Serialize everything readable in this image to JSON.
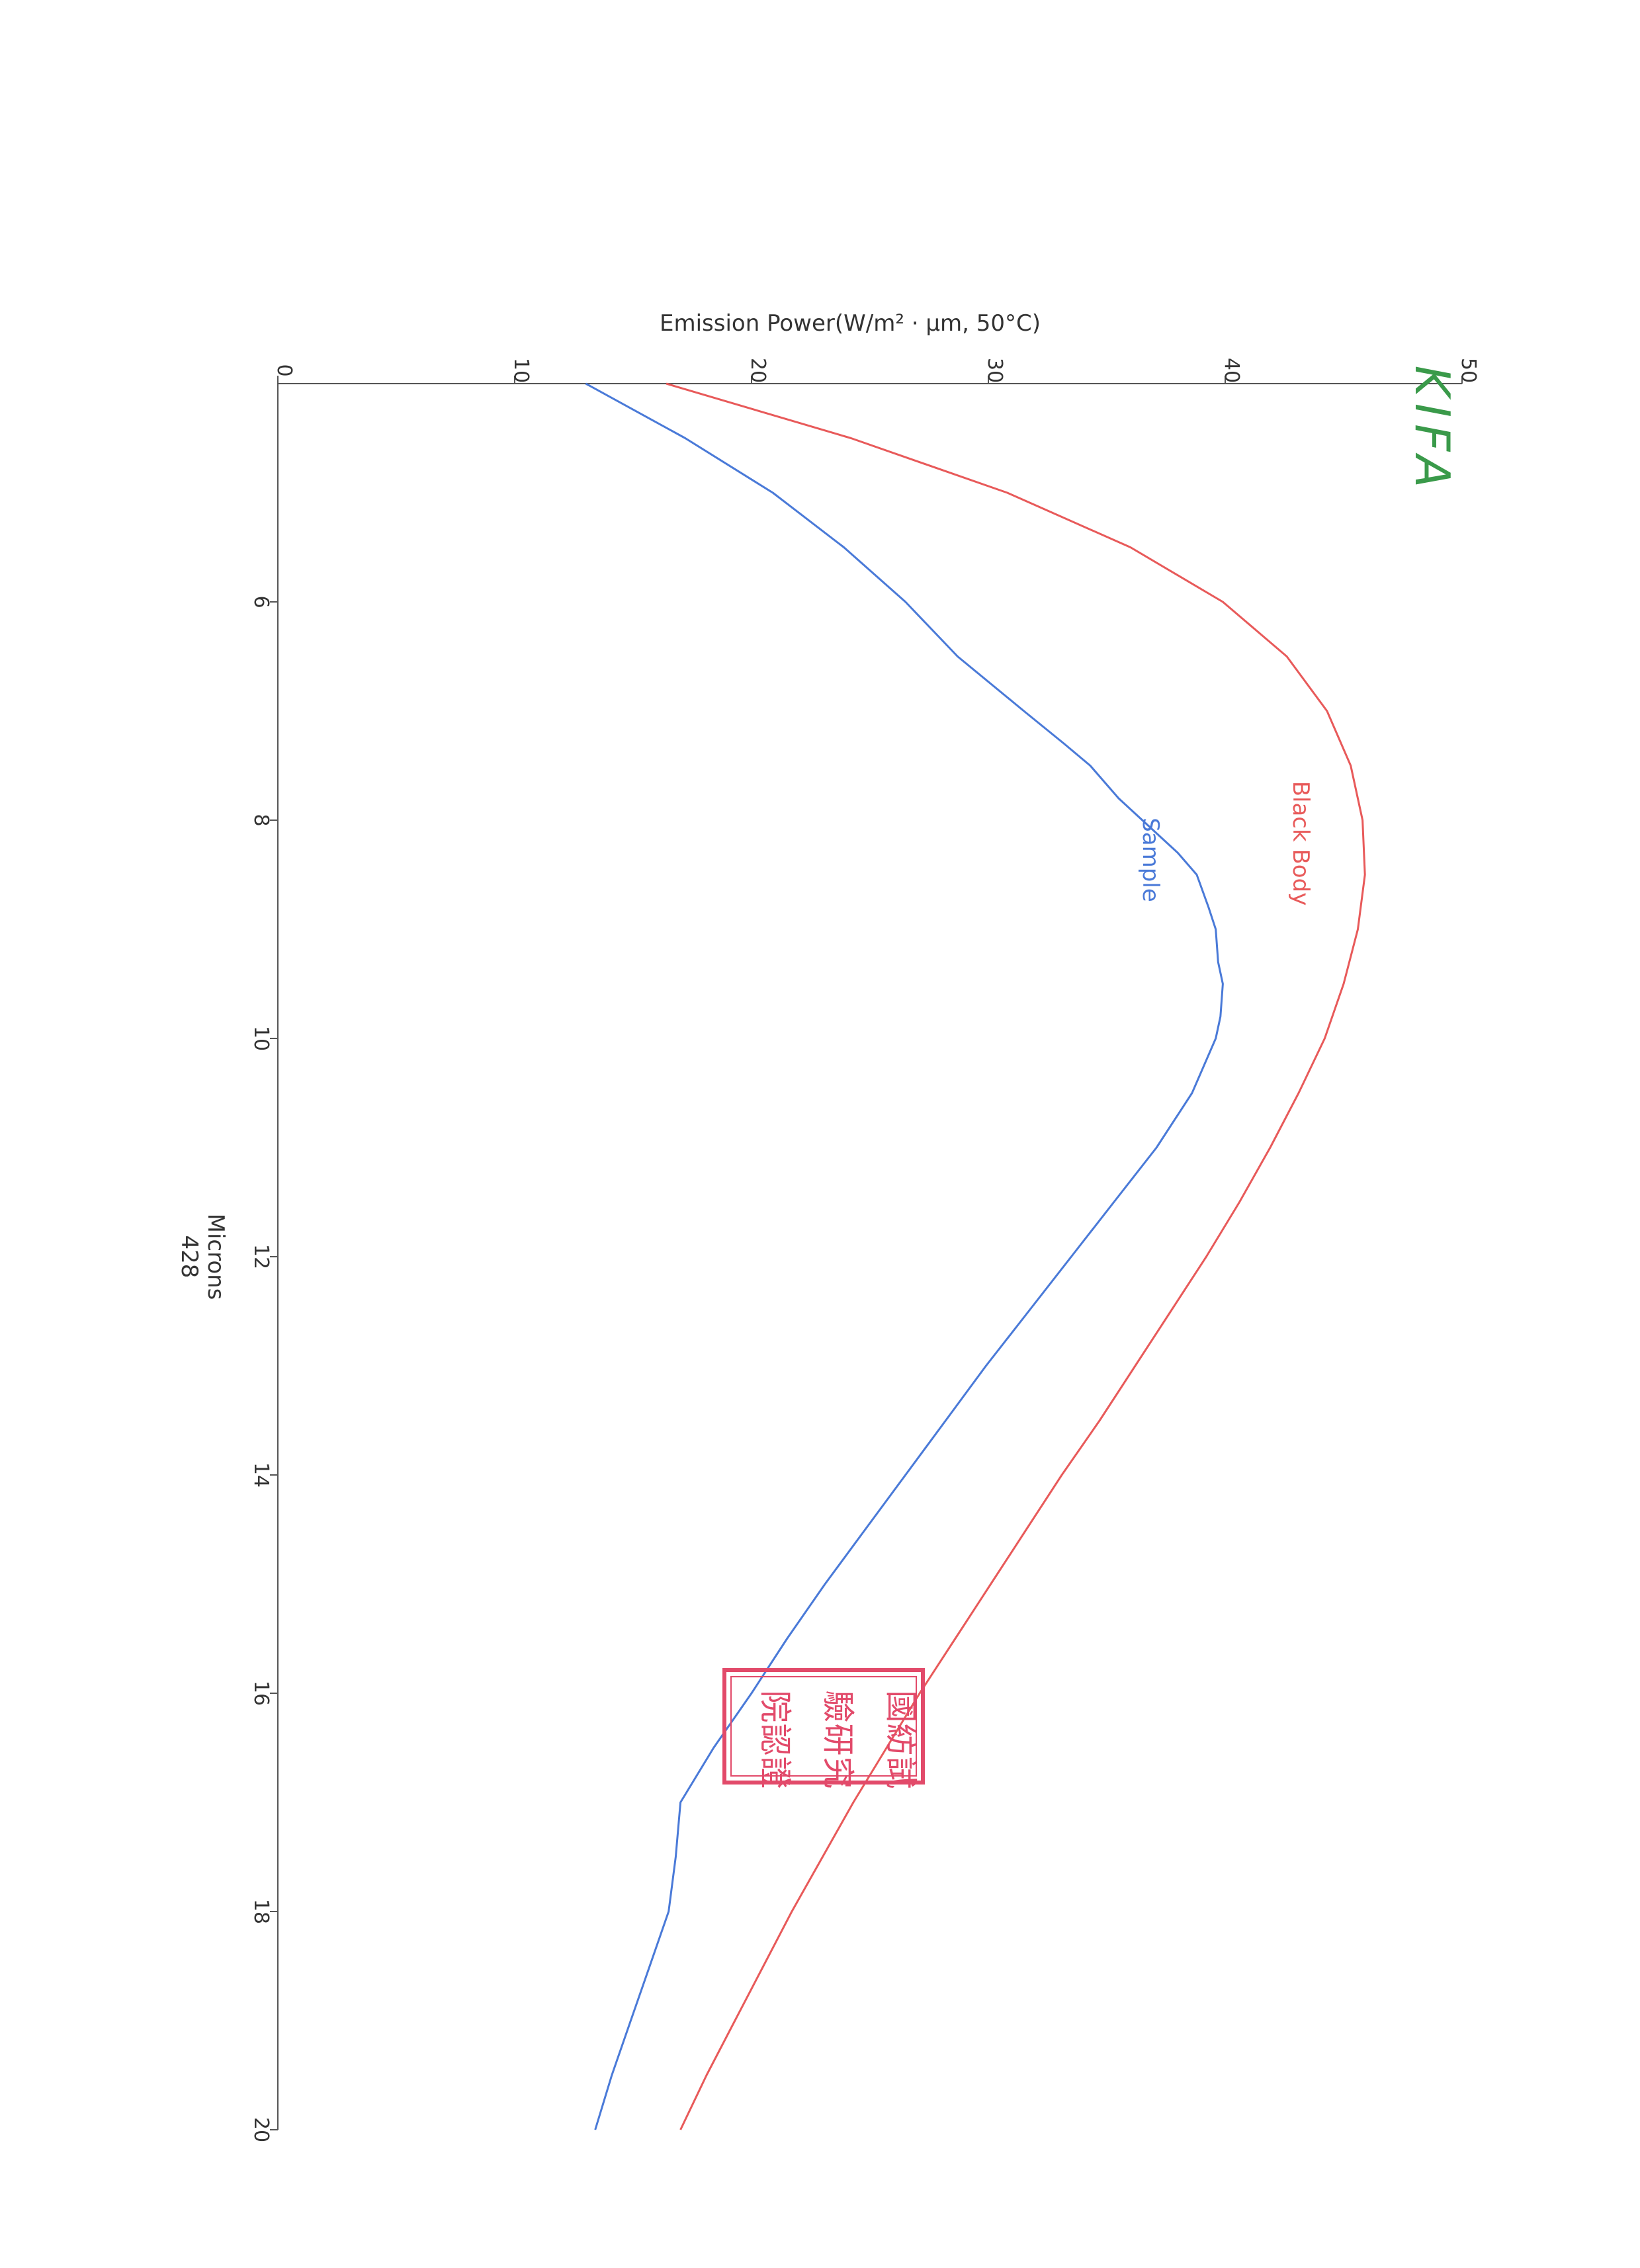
{
  "chart_data": {
    "type": "line",
    "orientation": "rotated-90-clockwise",
    "xlabel": "Microns",
    "xlabel_secondary": "428",
    "ylabel": "Emission Power(W/m² · μm, 50°C)",
    "xlim": [
      4,
      20
    ],
    "ylim": [
      0,
      50
    ],
    "x_ticks": [
      6,
      8,
      10,
      12,
      14,
      16,
      18,
      20
    ],
    "y_ticks": [
      0,
      10,
      20,
      30,
      40,
      50
    ],
    "x_tick_labels": [
      "6",
      "8",
      "10",
      "12",
      "14",
      "16",
      "18",
      "20"
    ],
    "y_tick_labels": [
      "0",
      "10",
      "20",
      "30",
      "40",
      "50"
    ],
    "grid": false,
    "legend": "inline labels",
    "series": [
      {
        "name": "Black Body",
        "color": "#e85a5a",
        "x": [
          4,
          4.5,
          5,
          5.5,
          6,
          6.5,
          7,
          7.5,
          8,
          8.5,
          9,
          9.5,
          10,
          10.5,
          11,
          11.5,
          12,
          12.5,
          13,
          13.5,
          14,
          14.5,
          15,
          15.5,
          16,
          16.5,
          17,
          17.5,
          18,
          18.5,
          19,
          19.5,
          20
        ],
        "y": [
          16.4,
          24.2,
          30.8,
          36.0,
          39.9,
          42.6,
          44.3,
          45.3,
          45.8,
          45.9,
          45.6,
          45.0,
          44.2,
          43.1,
          41.9,
          40.6,
          39.2,
          37.7,
          36.2,
          34.7,
          33.1,
          31.6,
          30.1,
          28.6,
          27.1,
          25.7,
          24.3,
          23.0,
          21.7,
          20.5,
          19.3,
          18.1,
          17.0
        ]
      },
      {
        "name": "Sample",
        "color": "#4a7ad8",
        "x": [
          4,
          4.5,
          5,
          5.5,
          6,
          6.5,
          7,
          7.3,
          7.5,
          7.8,
          8,
          8.3,
          8.5,
          8.8,
          9,
          9.3,
          9.5,
          9.8,
          10,
          10.5,
          11,
          11.5,
          12,
          12.5,
          13,
          13.5,
          14,
          14.5,
          15,
          15.5,
          16,
          16.5,
          17,
          17.5,
          18,
          18.5,
          19,
          19.5,
          20
        ],
        "y": [
          13.0,
          17.2,
          20.9,
          23.9,
          26.5,
          28.7,
          31.5,
          33.2,
          34.3,
          35.5,
          36.5,
          38.0,
          38.8,
          39.3,
          39.6,
          39.7,
          39.9,
          39.8,
          39.6,
          38.6,
          37.1,
          35.3,
          33.5,
          31.7,
          29.9,
          28.2,
          26.5,
          24.8,
          23.1,
          21.5,
          20.0,
          18.4,
          17.0,
          16.8,
          16.5,
          15.7,
          14.9,
          14.1,
          13.4
        ]
      }
    ]
  },
  "logo": {
    "text": "KIFA",
    "color": "#3a9a4a"
  },
  "stamp": {
    "color": "#e24a6a",
    "glyphs": [
      "國",
      "紡",
      "試",
      "驗",
      "研",
      "究",
      "院",
      "認",
      "證"
    ]
  }
}
